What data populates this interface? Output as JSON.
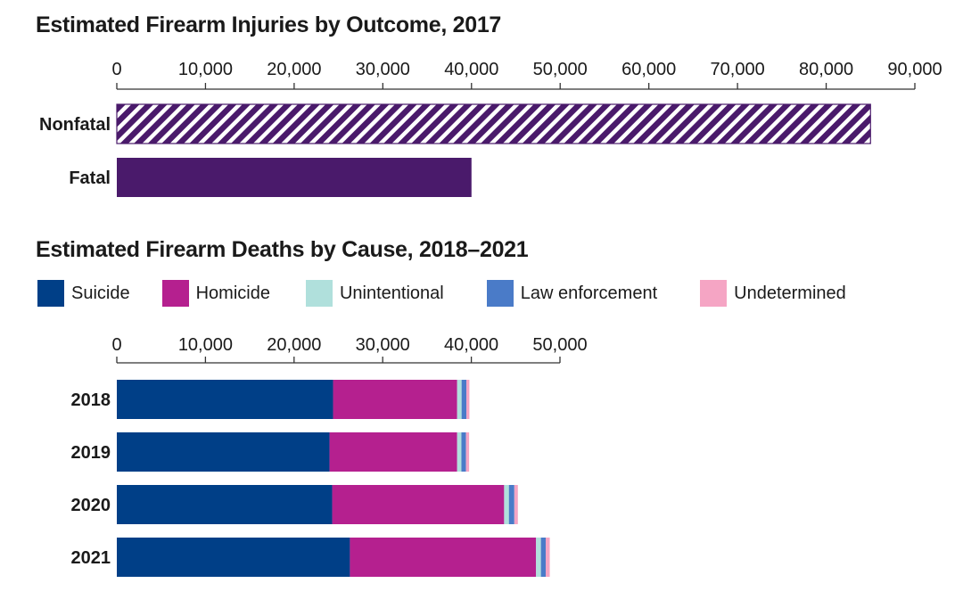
{
  "chart_data": [
    {
      "type": "bar",
      "orientation": "horizontal",
      "title": "Estimated Firearm Injuries by Outcome, 2017",
      "categories": [
        "Nonfatal",
        "Fatal"
      ],
      "values": [
        85000,
        40000
      ],
      "colors": [
        "#4a1a6b",
        "#4a1a6b"
      ],
      "patterns": [
        "hatched",
        "solid"
      ],
      "xlim": [
        0,
        90000
      ],
      "ticks": [
        0,
        10000,
        20000,
        30000,
        40000,
        50000,
        60000,
        70000,
        80000,
        90000
      ],
      "tick_labels": [
        "0",
        "10,000",
        "20,000",
        "30,000",
        "40,000",
        "50,000",
        "60,000",
        "70,000",
        "80,000",
        "90,000"
      ]
    },
    {
      "type": "bar",
      "orientation": "horizontal",
      "stacked": true,
      "title": "Estimated Firearm Deaths by Cause, 2018–2021",
      "categories": [
        "2018",
        "2019",
        "2020",
        "2021"
      ],
      "series": [
        {
          "name": "Suicide",
          "color": "#003f87",
          "values": [
            24400,
            24000,
            24300,
            26300
          ]
        },
        {
          "name": "Homicide",
          "color": "#b5208f",
          "values": [
            14000,
            14400,
            19400,
            21000
          ]
        },
        {
          "name": "Unintentional",
          "color": "#b0e0dc",
          "values": [
            500,
            480,
            540,
            550
          ]
        },
        {
          "name": "Law enforcement",
          "color": "#4a7bc8",
          "values": [
            540,
            520,
            610,
            540
          ]
        },
        {
          "name": "Undetermined",
          "color": "#f5a5c4",
          "values": [
            340,
            350,
            400,
            460
          ]
        }
      ],
      "xlim": [
        0,
        50000
      ],
      "ticks": [
        0,
        10000,
        20000,
        30000,
        40000,
        50000
      ],
      "tick_labels": [
        "0",
        "10,000",
        "20,000",
        "30,000",
        "40,000",
        "50,000"
      ]
    }
  ]
}
